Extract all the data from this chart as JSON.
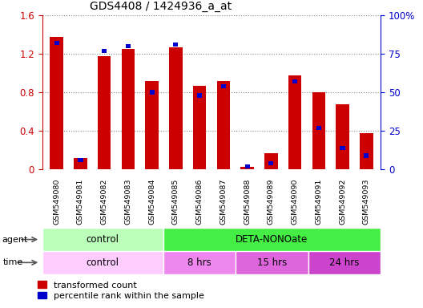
{
  "title": "GDS4408 / 1424936_a_at",
  "samples": [
    "GSM549080",
    "GSM549081",
    "GSM549082",
    "GSM549083",
    "GSM549084",
    "GSM549085",
    "GSM549086",
    "GSM549087",
    "GSM549088",
    "GSM549089",
    "GSM549090",
    "GSM549091",
    "GSM549092",
    "GSM549093"
  ],
  "red_values": [
    1.38,
    0.12,
    1.18,
    1.25,
    0.92,
    1.27,
    0.87,
    0.92,
    0.03,
    0.17,
    0.98,
    0.8,
    0.68,
    0.38
  ],
  "blue_values": [
    82,
    6,
    77,
    80,
    50,
    81,
    48,
    54,
    2,
    4,
    57,
    27,
    14,
    9
  ],
  "red_color": "#cc0000",
  "blue_color": "#0000cc",
  "ylim_left": [
    0,
    1.6
  ],
  "ylim_right": [
    0,
    100
  ],
  "yticks_left": [
    0,
    0.4,
    0.8,
    1.2,
    1.6
  ],
  "yticks_right": [
    0,
    25,
    50,
    75,
    100
  ],
  "ytick_labels_left": [
    "0",
    "0.4",
    "0.8",
    "1.2",
    "1.6"
  ],
  "ytick_labels_right": [
    "0",
    "25",
    "50",
    "75",
    "100%"
  ],
  "agent_groups": [
    {
      "label": "control",
      "start": 0,
      "end": 5,
      "color": "#bbffbb"
    },
    {
      "label": "DETA-NONOate",
      "start": 5,
      "end": 14,
      "color": "#44ee44"
    }
  ],
  "time_groups": [
    {
      "label": "control",
      "start": 0,
      "end": 5,
      "color": "#ffccff"
    },
    {
      "label": "8 hrs",
      "start": 5,
      "end": 8,
      "color": "#ee88ee"
    },
    {
      "label": "15 hrs",
      "start": 8,
      "end": 11,
      "color": "#dd66dd"
    },
    {
      "label": "24 hrs",
      "start": 11,
      "end": 14,
      "color": "#cc44cc"
    }
  ],
  "legend_red": "transformed count",
  "legend_blue": "percentile rank within the sample",
  "bar_width": 0.55,
  "background_color": "#ffffff",
  "grid_color": "#888888",
  "sample_bg_color": "#cccccc"
}
